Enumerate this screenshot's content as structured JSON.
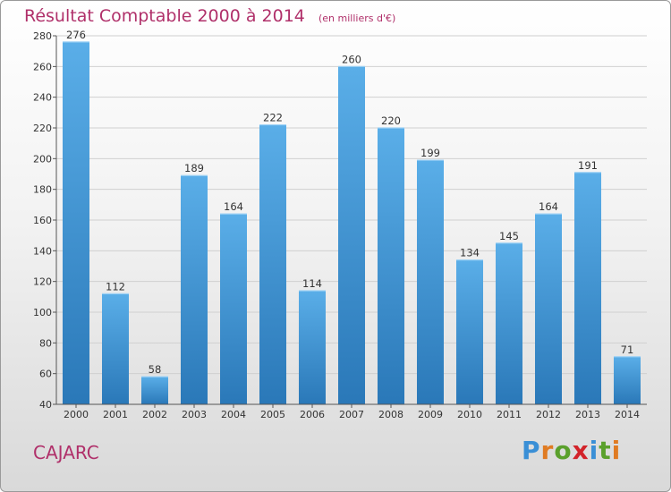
{
  "header": {
    "title": "Résultat Comptable 2000 à 2014",
    "unit": "(en milliers d'€)"
  },
  "footer": {
    "commune": "CAJARC",
    "brand": [
      "P",
      "r",
      "o",
      "x",
      "i",
      "t",
      "i"
    ]
  },
  "colors": {
    "title": "#b0306a",
    "bar_top": "#5aaee8",
    "bar_bottom": "#2a78b8",
    "brand": [
      "#3a8fd6",
      "#e07b22",
      "#5aa02c",
      "#d2232a",
      "#3a8fd6",
      "#5aa02c",
      "#e07b22"
    ]
  },
  "chart_data": {
    "type": "bar",
    "title": "Résultat Comptable 2000 à 2014",
    "ylabel": "en milliers d'€",
    "xlabel": "",
    "categories": [
      "2000",
      "2001",
      "2002",
      "2003",
      "2004",
      "2005",
      "2006",
      "2007",
      "2008",
      "2009",
      "2010",
      "2011",
      "2012",
      "2013",
      "2014"
    ],
    "values": [
      276,
      112,
      58,
      189,
      164,
      222,
      114,
      260,
      220,
      199,
      134,
      145,
      164,
      191,
      71
    ],
    "ylim": [
      40,
      280
    ],
    "yticks": [
      40,
      60,
      80,
      100,
      120,
      140,
      160,
      180,
      200,
      220,
      240,
      260,
      280
    ],
    "grid": true
  }
}
